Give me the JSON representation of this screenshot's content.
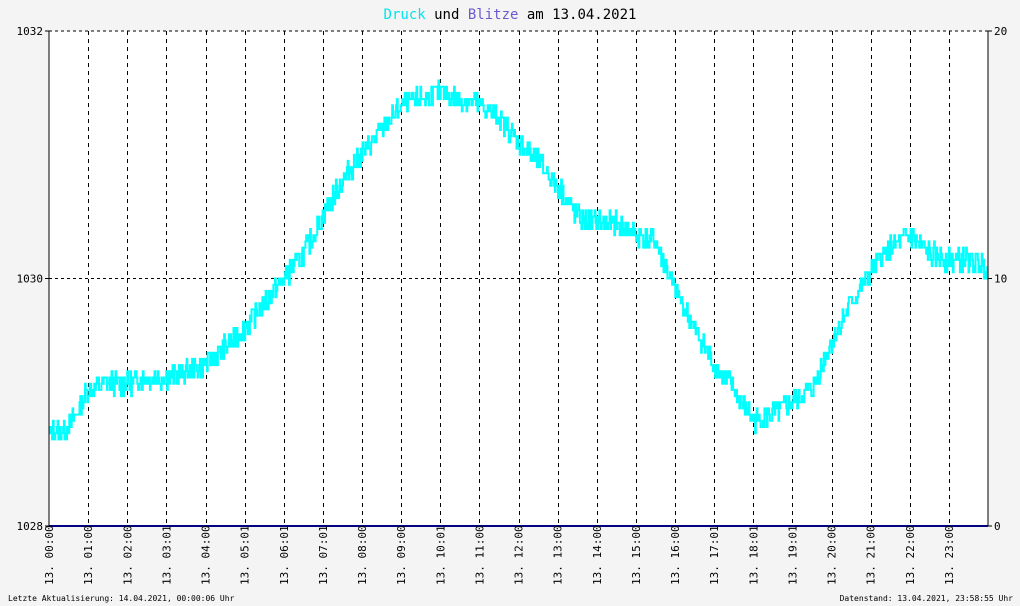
{
  "chart_data": {
    "type": "line",
    "title_parts": [
      {
        "text": "Druck",
        "color": "#00e5ee"
      },
      {
        "text": " und ",
        "color": "#000000"
      },
      {
        "text": "Blitze",
        "color": "#6a5acd"
      },
      {
        "text": " am 13.04.2021",
        "color": "#000000"
      }
    ],
    "left_axis": {
      "min": 1028,
      "max": 1032,
      "ticks": [
        "1028",
        "1030",
        "1032"
      ]
    },
    "right_axis": {
      "min": 0,
      "max": 20,
      "ticks": [
        "0",
        "10",
        "20"
      ]
    },
    "x_labels": [
      "13. 00:00",
      "13. 01:00",
      "13. 02:00",
      "13. 03:01",
      "13. 04:00",
      "13. 05:01",
      "13. 06:01",
      "13. 07:01",
      "13. 08:00",
      "13. 09:00",
      "13. 10:01",
      "13. 11:00",
      "13. 12:00",
      "13. 13:00",
      "13. 14:00",
      "13. 15:00",
      "13. 16:00",
      "13. 17:01",
      "13. 18:01",
      "13. 19:01",
      "13. 20:00",
      "13. 21:00",
      "13. 22:00",
      "13. 23:00"
    ],
    "grid": true,
    "series": [
      {
        "axis": "left",
        "color": "#00ffff",
        "hours": [
          0,
          0.5,
          1,
          1.5,
          2,
          2.5,
          3,
          3.5,
          4,
          4.5,
          5,
          5.5,
          6,
          6.5,
          7,
          7.5,
          8,
          8.5,
          9,
          9.5,
          10,
          10.5,
          11,
          11.5,
          12,
          12.5,
          13,
          13.5,
          14,
          14.5,
          15,
          15.5,
          16,
          16.5,
          17,
          17.5,
          18,
          18.5,
          19,
          19.5,
          20,
          20.5,
          21,
          21.5,
          22,
          22.5,
          23,
          23.5,
          23.98
        ],
        "values": [
          1028.75,
          1028.8,
          1029.1,
          1029.15,
          1029.15,
          1029.2,
          1029.2,
          1029.25,
          1029.3,
          1029.45,
          1029.6,
          1029.8,
          1030.0,
          1030.2,
          1030.5,
          1030.8,
          1031.0,
          1031.2,
          1031.4,
          1031.45,
          1031.5,
          1031.45,
          1031.4,
          1031.3,
          1031.1,
          1030.95,
          1030.75,
          1030.5,
          1030.45,
          1030.45,
          1030.35,
          1030.3,
          1029.9,
          1029.6,
          1029.3,
          1029.1,
          1028.85,
          1028.9,
          1029.0,
          1029.1,
          1029.5,
          1029.8,
          1030.05,
          1030.25,
          1030.35,
          1030.2,
          1030.15,
          1030.15,
          1030.1
        ],
        "noise": 0.09
      },
      {
        "axis": "right",
        "color": "#000080",
        "hours": [
          0,
          24
        ],
        "values": [
          0,
          0
        ]
      }
    ]
  },
  "footer": {
    "left": "Letzte Aktualisierung: 14.04.2021, 00:00:06 Uhr",
    "right": "Datenstand: 13.04.2021, 23:58:55 Uhr"
  }
}
